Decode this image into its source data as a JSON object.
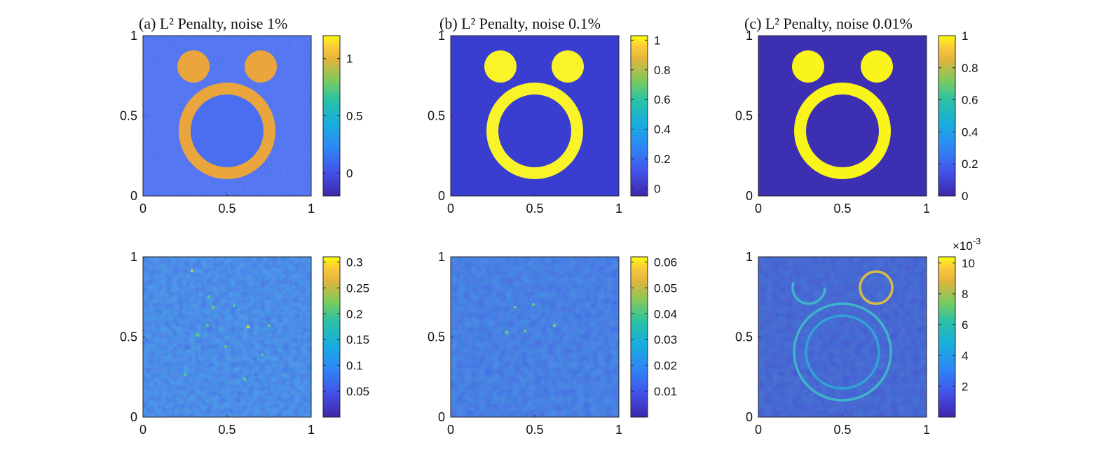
{
  "chart_data": [
    {
      "type": "heatmap",
      "title": "(a) L² Penalty, noise 1%",
      "x_ticks": [
        "0",
        "0.5",
        "1"
      ],
      "y_ticks": [
        "0",
        "0.5",
        "1"
      ],
      "xlim": [
        0,
        1
      ],
      "ylim": [
        0,
        1
      ],
      "colorbar": {
        "ticks": [
          "0",
          "0.5",
          "1"
        ],
        "range": [
          -0.2,
          1.2
        ]
      },
      "values": {
        "background": 0.02,
        "shape": 1.1
      }
    },
    {
      "type": "heatmap",
      "title": "(b) L² Penalty, noise 0.1%",
      "x_ticks": [
        "0",
        "0.5",
        "1"
      ],
      "y_ticks": [
        "0",
        "0.5",
        "1"
      ],
      "xlim": [
        0,
        1
      ],
      "ylim": [
        0,
        1
      ],
      "colorbar": {
        "ticks": [
          "0",
          "0.2",
          "0.4",
          "0.6",
          "0.8",
          "1"
        ],
        "range": [
          -0.05,
          1.03
        ]
      },
      "values": {
        "background": 0.0,
        "shape": 1.0
      }
    },
    {
      "type": "heatmap",
      "title": "(c) L² Penalty, noise 0.01%",
      "x_ticks": [
        "0",
        "0.5",
        "1"
      ],
      "y_ticks": [
        "0",
        "0.5",
        "1"
      ],
      "xlim": [
        0,
        1
      ],
      "ylim": [
        0,
        1
      ],
      "colorbar": {
        "ticks": [
          "0",
          "0.2",
          "0.4",
          "0.6",
          "0.8",
          "1"
        ],
        "range": [
          0,
          1
        ]
      },
      "values": {
        "background": 0.0,
        "shape": 1.0
      }
    },
    {
      "type": "heatmap",
      "title": "",
      "x_ticks": [
        "0",
        "0.5",
        "1"
      ],
      "y_ticks": [
        "0",
        "0.5",
        "1"
      ],
      "xlim": [
        0,
        1
      ],
      "ylim": [
        0,
        1
      ],
      "colorbar": {
        "ticks": [
          "0.05",
          "0.1",
          "0.15",
          "0.2",
          "0.25",
          "0.3"
        ],
        "range": [
          0,
          0.31
        ]
      },
      "values": {
        "description": "error map",
        "max": 0.31
      }
    },
    {
      "type": "heatmap",
      "title": "",
      "x_ticks": [
        "0",
        "0.5",
        "1"
      ],
      "y_ticks": [
        "0",
        "0.5",
        "1"
      ],
      "xlim": [
        0,
        1
      ],
      "ylim": [
        0,
        1
      ],
      "colorbar": {
        "ticks": [
          "0.01",
          "0.02",
          "0.03",
          "0.04",
          "0.05",
          "0.06"
        ],
        "range": [
          0,
          0.062
        ]
      },
      "values": {
        "description": "error map",
        "max": 0.062
      }
    },
    {
      "type": "heatmap",
      "title": "",
      "x_ticks": [
        "0",
        "0.5",
        "1"
      ],
      "y_ticks": [
        "0",
        "0.5",
        "1"
      ],
      "xlim": [
        0,
        1
      ],
      "ylim": [
        0,
        1
      ],
      "colorbar": {
        "ticks": [
          "2",
          "4",
          "6",
          "8",
          "10"
        ],
        "range": [
          0,
          10.4
        ],
        "multiplier": "×10",
        "exponent": "-3"
      },
      "values": {
        "description": "error map",
        "max": 10.4
      }
    }
  ]
}
